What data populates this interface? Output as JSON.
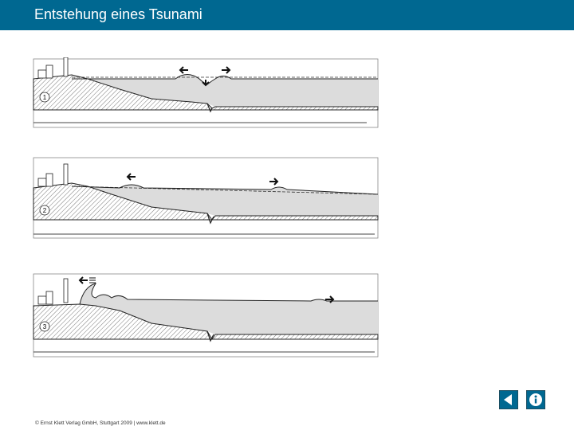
{
  "header": {
    "title": "Entstehung eines Tsunami"
  },
  "panels": [
    {
      "label": "1"
    },
    {
      "label": "2"
    },
    {
      "label": "3"
    }
  ],
  "footer": {
    "copyright": "© Ernst Klett Verlag GmbH, Stuttgart 2009 | www.klett.de"
  },
  "icons": {
    "back": "back-arrow-icon",
    "info": "info-icon"
  },
  "colors": {
    "header_bg": "#006891",
    "water": "#dcdcdc",
    "button_bg": "#006891"
  }
}
